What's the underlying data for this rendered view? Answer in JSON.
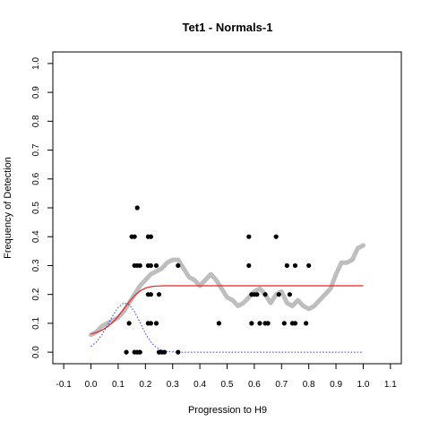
{
  "chart_data": {
    "type": "scatter",
    "title": "Tet1 - Normals-1",
    "xlabel": "Progression to H9",
    "ylabel": "Frequency of Detection",
    "xlim": [
      -0.14,
      1.14
    ],
    "ylim": [
      -0.04,
      1.04
    ],
    "x_ticks": [
      -0.1,
      0.0,
      0.1,
      0.2,
      0.3,
      0.4,
      0.5,
      0.6,
      0.7,
      0.8,
      0.9,
      1.0,
      1.1
    ],
    "x_tick_labels": [
      "-0.1",
      "0.0",
      "0.1",
      "0.2",
      "0.3",
      "0.4",
      "0.5",
      "0.6",
      "0.7",
      "0.8",
      "0.9",
      "1.0",
      "1.1"
    ],
    "y_ticks": [
      0.0,
      0.1,
      0.2,
      0.3,
      0.4,
      0.5,
      0.6,
      0.7,
      0.8,
      0.9,
      1.0
    ],
    "y_tick_labels": [
      "0.0",
      "0.1",
      "0.2",
      "0.3",
      "0.4",
      "0.5",
      "0.6",
      "0.7",
      "0.8",
      "0.9",
      "1.0"
    ],
    "grid": false,
    "legend": "none",
    "series": [
      {
        "kind": "points",
        "color": "#000000",
        "points": [
          [
            0.13,
            0.0
          ],
          [
            0.16,
            0.0
          ],
          [
            0.17,
            0.0
          ],
          [
            0.18,
            0.0
          ],
          [
            0.25,
            0.0
          ],
          [
            0.26,
            0.0
          ],
          [
            0.27,
            0.0
          ],
          [
            0.32,
            0.0
          ],
          [
            0.15,
            0.4
          ],
          [
            0.16,
            0.4
          ],
          [
            0.21,
            0.4
          ],
          [
            0.22,
            0.4
          ],
          [
            0.58,
            0.4
          ],
          [
            0.68,
            0.4
          ],
          [
            0.17,
            0.5
          ],
          [
            0.16,
            0.3
          ],
          [
            0.17,
            0.3
          ],
          [
            0.18,
            0.3
          ],
          [
            0.21,
            0.3
          ],
          [
            0.22,
            0.3
          ],
          [
            0.24,
            0.3
          ],
          [
            0.32,
            0.3
          ],
          [
            0.58,
            0.3
          ],
          [
            0.72,
            0.3
          ],
          [
            0.75,
            0.3
          ],
          [
            0.8,
            0.3
          ],
          [
            0.21,
            0.2
          ],
          [
            0.22,
            0.2
          ],
          [
            0.25,
            0.2
          ],
          [
            0.59,
            0.2
          ],
          [
            0.6,
            0.2
          ],
          [
            0.61,
            0.2
          ],
          [
            0.64,
            0.2
          ],
          [
            0.69,
            0.2
          ],
          [
            0.73,
            0.2
          ],
          [
            0.14,
            0.1
          ],
          [
            0.21,
            0.1
          ],
          [
            0.22,
            0.1
          ],
          [
            0.24,
            0.1
          ],
          [
            0.47,
            0.1
          ],
          [
            0.59,
            0.1
          ],
          [
            0.62,
            0.1
          ],
          [
            0.64,
            0.1
          ],
          [
            0.65,
            0.1
          ],
          [
            0.71,
            0.1
          ],
          [
            0.74,
            0.1
          ],
          [
            0.75,
            0.1
          ],
          [
            0.79,
            0.1
          ]
        ]
      },
      {
        "kind": "thick-line",
        "color": "#bebebe",
        "points": [
          [
            0.0,
            0.06
          ],
          [
            0.02,
            0.07
          ],
          [
            0.04,
            0.09
          ],
          [
            0.06,
            0.1
          ],
          [
            0.08,
            0.11
          ],
          [
            0.1,
            0.12
          ],
          [
            0.12,
            0.14
          ],
          [
            0.14,
            0.17
          ],
          [
            0.16,
            0.2
          ],
          [
            0.18,
            0.23
          ],
          [
            0.2,
            0.25
          ],
          [
            0.22,
            0.27
          ],
          [
            0.24,
            0.28
          ],
          [
            0.26,
            0.29
          ],
          [
            0.28,
            0.31
          ],
          [
            0.3,
            0.32
          ],
          [
            0.32,
            0.32
          ],
          [
            0.34,
            0.29
          ],
          [
            0.36,
            0.26
          ],
          [
            0.38,
            0.25
          ],
          [
            0.4,
            0.23
          ],
          [
            0.42,
            0.25
          ],
          [
            0.44,
            0.27
          ],
          [
            0.46,
            0.25
          ],
          [
            0.48,
            0.22
          ],
          [
            0.5,
            0.19
          ],
          [
            0.52,
            0.18
          ],
          [
            0.54,
            0.16
          ],
          [
            0.56,
            0.17
          ],
          [
            0.58,
            0.19
          ],
          [
            0.6,
            0.21
          ],
          [
            0.62,
            0.22
          ],
          [
            0.64,
            0.2
          ],
          [
            0.66,
            0.17
          ],
          [
            0.68,
            0.2
          ],
          [
            0.7,
            0.21
          ],
          [
            0.72,
            0.17
          ],
          [
            0.74,
            0.16
          ],
          [
            0.76,
            0.18
          ],
          [
            0.78,
            0.16
          ],
          [
            0.8,
            0.15
          ],
          [
            0.82,
            0.16
          ],
          [
            0.84,
            0.18
          ],
          [
            0.86,
            0.2
          ],
          [
            0.88,
            0.22
          ],
          [
            0.9,
            0.27
          ],
          [
            0.92,
            0.31
          ],
          [
            0.94,
            0.31
          ],
          [
            0.96,
            0.32
          ],
          [
            0.98,
            0.36
          ],
          [
            1.0,
            0.37
          ]
        ]
      },
      {
        "kind": "line",
        "color": "#ee2222",
        "points": [
          [
            0.0,
            0.063
          ],
          [
            0.02,
            0.068
          ],
          [
            0.04,
            0.076
          ],
          [
            0.06,
            0.088
          ],
          [
            0.08,
            0.103
          ],
          [
            0.1,
            0.124
          ],
          [
            0.12,
            0.149
          ],
          [
            0.14,
            0.174
          ],
          [
            0.16,
            0.196
          ],
          [
            0.18,
            0.212
          ],
          [
            0.2,
            0.222
          ],
          [
            0.22,
            0.227
          ],
          [
            0.24,
            0.229
          ],
          [
            0.27,
            0.23
          ],
          [
            0.3,
            0.23
          ],
          [
            1.0,
            0.23
          ]
        ]
      },
      {
        "kind": "dotted-line",
        "color": "#3333dd",
        "points": [
          [
            0.0,
            0.02
          ],
          [
            0.02,
            0.035
          ],
          [
            0.04,
            0.06
          ],
          [
            0.06,
            0.092
          ],
          [
            0.08,
            0.126
          ],
          [
            0.1,
            0.155
          ],
          [
            0.12,
            0.17
          ],
          [
            0.14,
            0.165
          ],
          [
            0.16,
            0.14
          ],
          [
            0.18,
            0.103
          ],
          [
            0.2,
            0.065
          ],
          [
            0.22,
            0.035
          ],
          [
            0.24,
            0.016
          ],
          [
            0.26,
            0.006
          ],
          [
            0.28,
            0.002
          ],
          [
            0.32,
            0.0
          ],
          [
            1.0,
            0.0
          ]
        ]
      }
    ]
  }
}
